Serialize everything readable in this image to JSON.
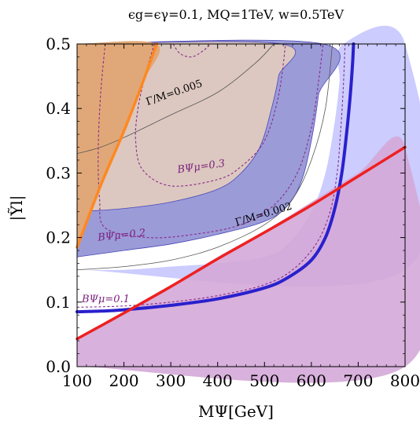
{
  "chart_data": {
    "type": "area",
    "title": "ϵg=ϵγ=0.1, MQ=1TeV, w=0.5TeV",
    "xlabel": "MΨ[GeV]",
    "ylabel": "|Ỹl|",
    "xlim": [
      100,
      800
    ],
    "ylim": [
      0,
      0.5
    ],
    "x_ticks": [
      100,
      200,
      300,
      400,
      500,
      600,
      700,
      800
    ],
    "y_ticks": [
      0.0,
      0.1,
      0.2,
      0.3,
      0.4,
      0.5
    ],
    "x_tick_labels": [
      "100",
      "200",
      "300",
      "400",
      "500",
      "600",
      "700",
      "800"
    ],
    "y_tick_labels": [
      "0.0",
      "0.1",
      "0.2",
      "0.3",
      "0.4",
      "0.5"
    ],
    "grid": false,
    "colors": {
      "light_blue_region": "#ccccff",
      "mid_blue_band": "#9b9bd8",
      "tan_region": "#dcc8c0",
      "orange_region": "#e0a878",
      "pink_region": "#d4a8d8",
      "blue_line": "#2a20cc",
      "red_line": "#ee2020",
      "orange_line": "#ff8820",
      "contour_purple": "#8a2a8a",
      "contour_gray": "#555555"
    },
    "regions": [
      {
        "name": "light-blue-region",
        "points": [
          [
            100,
            0.15
          ],
          [
            200,
            0.15
          ],
          [
            300,
            0.155
          ],
          [
            400,
            0.16
          ],
          [
            500,
            0.17
          ],
          [
            550,
            0.19
          ],
          [
            600,
            0.24
          ],
          [
            630,
            0.3
          ],
          [
            650,
            0.38
          ],
          [
            660,
            0.44
          ],
          [
            668,
            0.5
          ],
          [
            800,
            0.5
          ],
          [
            800,
            0.15
          ],
          [
            100,
            0.15
          ]
        ]
      },
      {
        "name": "mid-blue-band",
        "points": [
          [
            100,
            0.17
          ],
          [
            200,
            0.18
          ],
          [
            300,
            0.19
          ],
          [
            400,
            0.205
          ],
          [
            500,
            0.225
          ],
          [
            550,
            0.25
          ],
          [
            580,
            0.29
          ],
          [
            600,
            0.35
          ],
          [
            615,
            0.42
          ],
          [
            625,
            0.5
          ],
          [
            100,
            0.5
          ]
        ]
      },
      {
        "name": "tan-region",
        "points": [
          [
            100,
            0.24
          ],
          [
            200,
            0.245
          ],
          [
            300,
            0.255
          ],
          [
            400,
            0.275
          ],
          [
            450,
            0.3
          ],
          [
            490,
            0.34
          ],
          [
            515,
            0.4
          ],
          [
            530,
            0.45
          ],
          [
            535,
            0.5
          ],
          [
            100,
            0.5
          ]
        ]
      },
      {
        "name": "orange-region",
        "points": [
          [
            100,
            0.185
          ],
          [
            150,
            0.28
          ],
          [
            200,
            0.365
          ],
          [
            240,
            0.44
          ],
          [
            270,
            0.5
          ],
          [
            100,
            0.5
          ]
        ]
      },
      {
        "name": "pink-region",
        "points": [
          [
            100,
            0.0
          ],
          [
            800,
            0.0
          ],
          [
            800,
            0.34
          ],
          [
            700,
            0.3
          ],
          [
            600,
            0.255
          ],
          [
            500,
            0.21
          ],
          [
            400,
            0.17
          ],
          [
            300,
            0.125
          ],
          [
            200,
            0.085
          ],
          [
            120,
            0.05
          ],
          [
            100,
            0.043
          ]
        ]
      }
    ],
    "series": [
      {
        "name": "blue-line",
        "points": [
          [
            100,
            0.085
          ],
          [
            150,
            0.086
          ],
          [
            200,
            0.088
          ],
          [
            300,
            0.095
          ],
          [
            400,
            0.105
          ],
          [
            500,
            0.122
          ],
          [
            550,
            0.138
          ],
          [
            600,
            0.165
          ],
          [
            630,
            0.2
          ],
          [
            650,
            0.245
          ],
          [
            665,
            0.3
          ],
          [
            675,
            0.36
          ],
          [
            683,
            0.42
          ],
          [
            688,
            0.47
          ],
          [
            690,
            0.5
          ]
        ]
      },
      {
        "name": "red-line",
        "points": [
          [
            100,
            0.043
          ],
          [
            200,
            0.083
          ],
          [
            300,
            0.124
          ],
          [
            400,
            0.167
          ],
          [
            500,
            0.208
          ],
          [
            600,
            0.25
          ],
          [
            700,
            0.295
          ],
          [
            800,
            0.34
          ]
        ]
      },
      {
        "name": "orange-line",
        "points": [
          [
            100,
            0.185
          ],
          [
            150,
            0.28
          ],
          [
            200,
            0.365
          ],
          [
            240,
            0.44
          ],
          [
            270,
            0.5
          ]
        ]
      }
    ],
    "contours": [
      {
        "name": "gamma-0-005-contour",
        "style": "solid-gray",
        "label": "Γ/M=0.005",
        "label_at": [
          250,
          0.405
        ],
        "label_angle": -19,
        "points": [
          [
            100,
            0.33
          ],
          [
            150,
            0.34
          ],
          [
            200,
            0.355
          ],
          [
            300,
            0.39
          ],
          [
            400,
            0.425
          ],
          [
            480,
            0.47
          ],
          [
            520,
            0.5
          ]
        ]
      },
      {
        "name": "gamma-0-002-contour",
        "style": "solid-gray",
        "label": "Γ/M=0.002",
        "label_at": [
          440,
          0.218
        ],
        "label_angle": -17,
        "points": [
          [
            100,
            0.15
          ],
          [
            200,
            0.155
          ],
          [
            300,
            0.165
          ],
          [
            400,
            0.185
          ],
          [
            500,
            0.22
          ],
          [
            560,
            0.26
          ],
          [
            600,
            0.32
          ],
          [
            630,
            0.4
          ],
          [
            645,
            0.5
          ]
        ]
      },
      {
        "name": "b-0-3-contour",
        "style": "dashed-purple",
        "label": "BΨμ=0.3",
        "label_at": [
          315,
          0.3
        ],
        "label_angle": -8,
        "points": [
          [
            265,
            0.5
          ],
          [
            245,
            0.45
          ],
          [
            230,
            0.4
          ],
          [
            225,
            0.35
          ],
          [
            240,
            0.305
          ],
          [
            300,
            0.28
          ],
          [
            400,
            0.29
          ],
          [
            450,
            0.31
          ],
          [
            500,
            0.35
          ],
          [
            530,
            0.42
          ],
          [
            545,
            0.5
          ]
        ]
      },
      {
        "name": "b-0-2-contour",
        "style": "dashed-purple",
        "label": "BΨμ=0.2",
        "label_at": [
          145,
          0.195
        ],
        "label_angle": -6,
        "points": [
          [
            160,
            0.5
          ],
          [
            150,
            0.42
          ],
          [
            145,
            0.33
          ],
          [
            148,
            0.26
          ],
          [
            160,
            0.215
          ],
          [
            250,
            0.2
          ],
          [
            350,
            0.205
          ],
          [
            450,
            0.22
          ],
          [
            520,
            0.25
          ],
          [
            570,
            0.3
          ],
          [
            600,
            0.37
          ],
          [
            615,
            0.44
          ],
          [
            625,
            0.5
          ]
        ]
      },
      {
        "name": "b-0-1-contour",
        "style": "dashed-purple",
        "label": "BΨμ=0.1",
        "label_at": [
          110,
          0.1
        ],
        "label_angle": 0,
        "points": [
          [
            100,
            0.092
          ],
          [
            200,
            0.094
          ],
          [
            300,
            0.1
          ],
          [
            400,
            0.11
          ],
          [
            500,
            0.127
          ],
          [
            560,
            0.15
          ],
          [
            610,
            0.19
          ],
          [
            640,
            0.24
          ],
          [
            655,
            0.3
          ],
          [
            662,
            0.36
          ],
          [
            668,
            0.43
          ],
          [
            672,
            0.5
          ]
        ]
      },
      {
        "name": "upper-left-dashed-contour",
        "style": "dashed-purple",
        "label": "",
        "points": [
          [
            305,
            0.5
          ],
          [
            320,
            0.485
          ],
          [
            345,
            0.48
          ],
          [
            370,
            0.49
          ],
          [
            385,
            0.5
          ]
        ]
      }
    ]
  }
}
